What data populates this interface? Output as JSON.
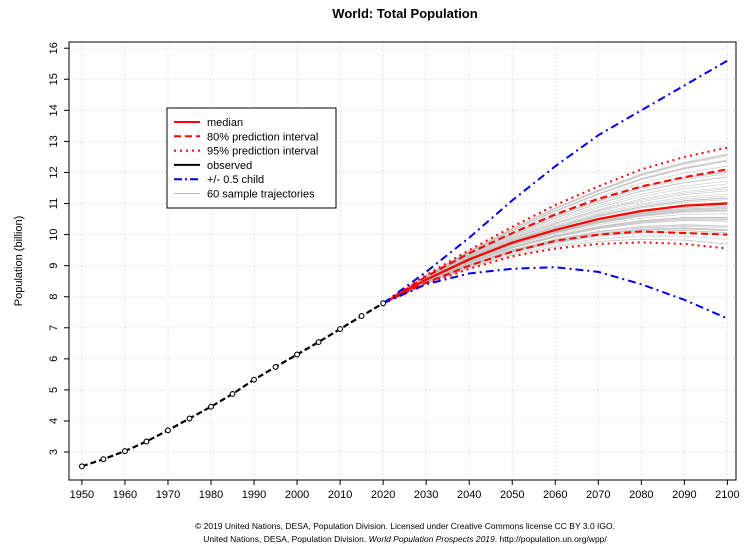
{
  "chart_data": {
    "type": "line",
    "title": "World: Total Population",
    "xlabel": "",
    "ylabel": "Population (billion)",
    "xlim": [
      1947,
      2102
    ],
    "ylim": [
      2.1,
      16.2
    ],
    "x_ticks": [
      "1950",
      "1960",
      "1970",
      "1980",
      "1990",
      "2000",
      "2010",
      "2020",
      "2030",
      "2040",
      "2050",
      "2060",
      "2070",
      "2080",
      "2090",
      "2100"
    ],
    "y_ticks": [
      "3",
      "4",
      "5",
      "6",
      "7",
      "8",
      "9",
      "10",
      "11",
      "12",
      "13",
      "14",
      "15",
      "16"
    ],
    "grid": true,
    "legend_position": "top-left",
    "legend": [
      {
        "label": "median",
        "color": "#ff0000",
        "style": "solid"
      },
      {
        "label": "80% prediction interval",
        "color": "#ff0000",
        "style": "dashed"
      },
      {
        "label": "95% prediction interval",
        "color": "#ff0000",
        "style": "dotted"
      },
      {
        "label": "observed",
        "color": "#000000",
        "style": "solid"
      },
      {
        "label": "+/- 0.5 child",
        "color": "#0000ee",
        "style": "dashdot"
      },
      {
        "label": "60 sample trajectories",
        "color": "#bbbbbb",
        "style": "thin"
      }
    ],
    "series": [
      {
        "name": "observed",
        "x": [
          1950,
          1955,
          1960,
          1965,
          1970,
          1975,
          1980,
          1985,
          1990,
          1995,
          2000,
          2005,
          2010,
          2015,
          2020
        ],
        "values": [
          2.54,
          2.77,
          3.03,
          3.34,
          3.7,
          4.08,
          4.46,
          4.87,
          5.33,
          5.74,
          6.14,
          6.54,
          6.96,
          7.38,
          7.79
        ]
      },
      {
        "name": "median",
        "x": [
          2020,
          2030,
          2040,
          2050,
          2060,
          2070,
          2080,
          2090,
          2100
        ],
        "values": [
          7.79,
          8.55,
          9.2,
          9.74,
          10.15,
          10.5,
          10.76,
          10.93,
          11.0
        ]
      },
      {
        "name": "80% prediction interval (upper)",
        "x": [
          2020,
          2030,
          2040,
          2050,
          2060,
          2070,
          2080,
          2090,
          2100
        ],
        "values": [
          7.79,
          8.65,
          9.4,
          10.05,
          10.65,
          11.15,
          11.55,
          11.85,
          12.1
        ]
      },
      {
        "name": "80% prediction interval (lower)",
        "x": [
          2020,
          2030,
          2040,
          2050,
          2060,
          2070,
          2080,
          2090,
          2100
        ],
        "values": [
          7.79,
          8.45,
          9.0,
          9.45,
          9.8,
          10.0,
          10.1,
          10.05,
          10.0
        ]
      },
      {
        "name": "95% prediction interval (upper)",
        "x": [
          2020,
          2030,
          2040,
          2050,
          2060,
          2070,
          2080,
          2090,
          2100
        ],
        "values": [
          7.79,
          8.7,
          9.5,
          10.25,
          10.95,
          11.55,
          12.1,
          12.5,
          12.8
        ]
      },
      {
        "name": "95% prediction interval (lower)",
        "x": [
          2020,
          2030,
          2040,
          2050,
          2060,
          2070,
          2080,
          2090,
          2100
        ],
        "values": [
          7.79,
          8.4,
          8.9,
          9.3,
          9.55,
          9.7,
          9.75,
          9.7,
          9.55
        ]
      },
      {
        "name": "+/- 0.5 child (upper)",
        "x": [
          2020,
          2030,
          2040,
          2050,
          2060,
          2070,
          2080,
          2090,
          2100
        ],
        "values": [
          7.79,
          8.8,
          9.9,
          11.1,
          12.2,
          13.2,
          14.0,
          14.8,
          15.6
        ]
      },
      {
        "name": "+/- 0.5 child (lower)",
        "x": [
          2020,
          2030,
          2040,
          2050,
          2060,
          2070,
          2080,
          2090,
          2100
        ],
        "values": [
          7.79,
          8.4,
          8.75,
          8.9,
          8.95,
          8.8,
          8.4,
          7.9,
          7.3
        ]
      }
    ]
  },
  "credit": {
    "line1": "© 2019 United Nations, DESA, Population Division. Licensed under Creative Commons license CC BY 3.0 IGO.",
    "line2_pre": "United Nations, DESA, Population Division. ",
    "line2_ital": "World Population Prospects 2019",
    "line2_post": ". http://population.un.org/wpp/"
  }
}
